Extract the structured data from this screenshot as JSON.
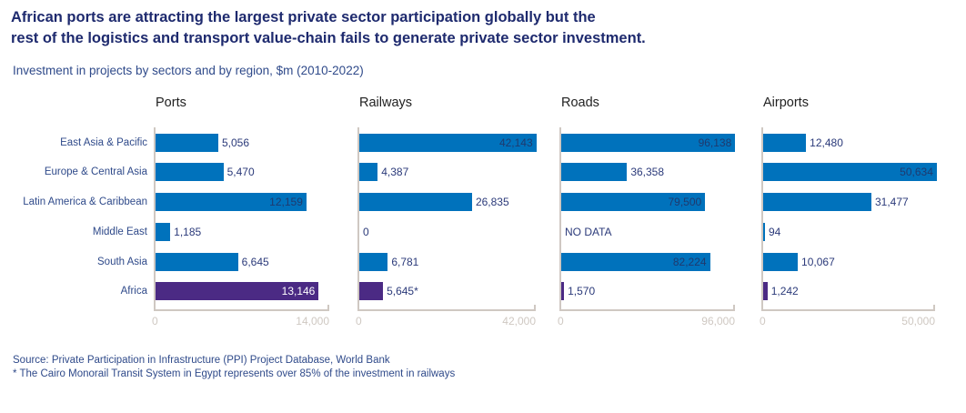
{
  "title_line1": "African ports are attracting the largest private sector participation globally but the",
  "title_line2": "rest of the logistics and transport value-chain fails to generate private sector investment.",
  "subtitle": "Investment in projects by sectors and by region, $m (2010-2022)",
  "source": "Source: Private Participation in Infrastructure (PPI) Project Database, World Bank",
  "footnote": "* The Cairo Monorail Transit System in Egypt represents over 85% of the investment in railways",
  "colors": {
    "region": "#0072bc",
    "africa": "#4b2a84",
    "label": "#2b3a7a",
    "axis": "#cfc8c2"
  },
  "chart_data": {
    "type": "bar",
    "orientation": "horizontal",
    "categories": [
      "East Asia & Pacific",
      "Europe & Central Asia",
      "Latin America & Caribbean",
      "Middle East",
      "South Asia",
      "Africa"
    ],
    "panels": [
      {
        "title": "Ports",
        "xlim": [
          0,
          14000
        ],
        "ticks": [
          "0",
          "14,000"
        ],
        "values": [
          5056,
          5470,
          12159,
          1185,
          6645,
          13146
        ],
        "labels": [
          "5,056",
          "5,470",
          "12,159",
          "1,185",
          "6,645",
          "13,146"
        ]
      },
      {
        "title": "Railways",
        "xlim": [
          0,
          42000
        ],
        "ticks": [
          "0",
          "42,000"
        ],
        "values": [
          42143,
          4387,
          26835,
          0,
          6781,
          5645
        ],
        "labels": [
          "42,143",
          "4,387",
          "26,835",
          "0",
          "6,781",
          "5,645*"
        ]
      },
      {
        "title": "Roads",
        "xlim": [
          0,
          96000
        ],
        "ticks": [
          "0",
          "96,000"
        ],
        "values": [
          96138,
          36358,
          79500,
          null,
          82224,
          1570
        ],
        "labels": [
          "96,138",
          "36,358",
          "79,500",
          "NO DATA",
          "82,224",
          "1,570"
        ]
      },
      {
        "title": "Airports",
        "xlim": [
          0,
          50000
        ],
        "ticks": [
          "0",
          "50,000"
        ],
        "values": [
          12480,
          50634,
          31477,
          94,
          10067,
          1242
        ],
        "labels": [
          "12,480",
          "50,634",
          "31,477",
          "94",
          "10,067",
          "1,242"
        ]
      }
    ]
  }
}
